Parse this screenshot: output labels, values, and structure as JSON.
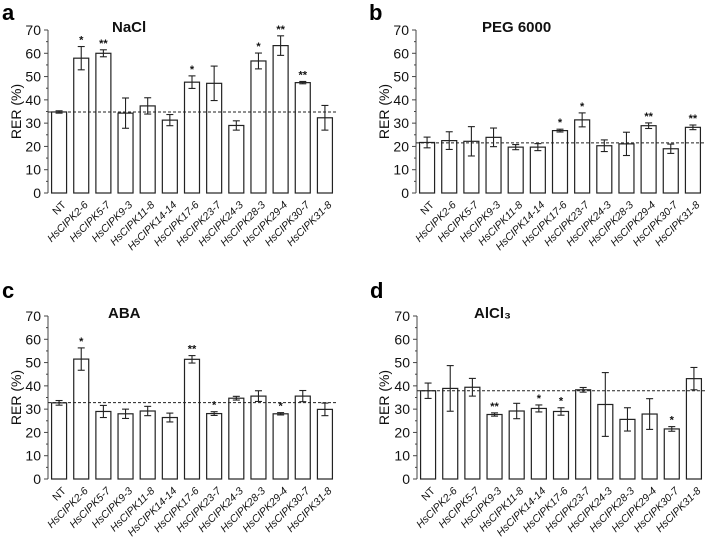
{
  "chart_data": [
    {
      "type": "bar",
      "panel_label": "a",
      "title": "NaCl",
      "ylabel": "RER (%)",
      "ylim": [
        0,
        70
      ],
      "yticks": [
        0,
        10,
        20,
        30,
        40,
        50,
        60,
        70
      ],
      "grid": false,
      "reference_line": 34.8,
      "categories": [
        "NT",
        "HsCIPK2-6",
        "HsCIPK5-7",
        "HsCIPK9-3",
        "HsCIPK11-8",
        "HsCIPK14-14",
        "HsCIPK17-6",
        "HsCIPK23-7",
        "HsCIPK24-3",
        "HsCIPK28-3",
        "HsCIPK29-4",
        "HsCIPK30-7",
        "HsCIPK31-8"
      ],
      "values": [
        34.8,
        57.9,
        60.0,
        34.3,
        37.4,
        31.3,
        47.6,
        47.1,
        29.0,
        56.7,
        63.3,
        47.4,
        32.3
      ],
      "errors": [
        0.5,
        5.0,
        1.5,
        6.5,
        3.5,
        2.4,
        2.7,
        7.4,
        2.0,
        3.4,
        4.2,
        0.5,
        5.3
      ],
      "significance": [
        "",
        "*",
        "**",
        "",
        "",
        "",
        "*",
        "",
        "",
        "*",
        "**",
        "**",
        ""
      ]
    },
    {
      "type": "bar",
      "panel_label": "b",
      "title": "PEG 6000",
      "ylabel": "RER (%)",
      "ylim": [
        0,
        70
      ],
      "yticks": [
        0,
        10,
        20,
        30,
        40,
        50,
        60,
        70
      ],
      "grid": false,
      "reference_line": 21.5,
      "categories": [
        "NT",
        "HsCIPK2-6",
        "HsCIPK5-7",
        "HsCIPK9-3",
        "HsCIPK11-8",
        "HsCIPK14-14",
        "HsCIPK17-6",
        "HsCIPK23-7",
        "HsCIPK24-3",
        "HsCIPK28-3",
        "HsCIPK29-4",
        "HsCIPK30-7",
        "HsCIPK31-8"
      ],
      "values": [
        21.7,
        22.5,
        22.2,
        23.9,
        19.7,
        19.7,
        26.8,
        31.4,
        20.3,
        21.1,
        28.9,
        19.0,
        28.2
      ],
      "errors": [
        2.3,
        3.8,
        6.3,
        4.0,
        1.1,
        1.5,
        0.6,
        3.0,
        2.5,
        5.0,
        1.2,
        2.0,
        1.0
      ],
      "significance": [
        "",
        "",
        "",
        "",
        "",
        "",
        "*",
        "*",
        "",
        "",
        "**",
        "",
        "**"
      ]
    },
    {
      "type": "bar",
      "panel_label": "c",
      "title": "ABA",
      "ylabel": "RER (%)",
      "ylim": [
        0,
        70
      ],
      "yticks": [
        0,
        10,
        20,
        30,
        40,
        50,
        60,
        70
      ],
      "grid": false,
      "reference_line": 32.8,
      "categories": [
        "NT",
        "HsCIPK2-6",
        "HsCIPK5-7",
        "HsCIPK9-3",
        "HsCIPK11-8",
        "HsCIPK14-14",
        "HsCIPK17-6",
        "HsCIPK23-7",
        "HsCIPK24-3",
        "HsCIPK28-3",
        "HsCIPK29-4",
        "HsCIPK30-7",
        "HsCIPK31-8"
      ],
      "values": [
        32.7,
        51.5,
        29.0,
        28.0,
        29.2,
        26.4,
        51.4,
        28.1,
        34.7,
        35.6,
        28.0,
        35.6,
        29.9
      ],
      "errors": [
        1.0,
        4.8,
        2.6,
        2.0,
        2.0,
        1.9,
        1.6,
        0.8,
        0.8,
        2.3,
        0.5,
        2.4,
        2.7
      ],
      "significance": [
        "",
        "*",
        "",
        "",
        "",
        "",
        "**",
        "*",
        "",
        "",
        "*",
        "",
        ""
      ]
    },
    {
      "type": "bar",
      "panel_label": "d",
      "title": "AlCl₃",
      "ylabel": "RER (%)",
      "ylim": [
        0,
        70
      ],
      "yticks": [
        0,
        10,
        20,
        30,
        40,
        50,
        60,
        70
      ],
      "grid": false,
      "reference_line": 37.9,
      "categories": [
        "NT",
        "HsCIPK2-6",
        "HsCIPK5-7",
        "HsCIPK9-3",
        "HsCIPK11-8",
        "HsCIPK14-14",
        "HsCIPK17-6",
        "HsCIPK23-7",
        "HsCIPK24-3",
        "HsCIPK28-3",
        "HsCIPK29-4",
        "HsCIPK30-7",
        "HsCIPK31-8"
      ],
      "values": [
        37.9,
        38.9,
        39.4,
        27.7,
        29.2,
        30.3,
        29.0,
        38.3,
        32.0,
        25.6,
        27.9,
        21.5,
        43.1
      ],
      "errors": [
        3.3,
        9.8,
        3.8,
        0.7,
        3.3,
        1.5,
        1.6,
        1.0,
        13.7,
        5.0,
        6.6,
        1.0,
        4.8
      ],
      "significance": [
        "",
        "",
        "",
        "**",
        "",
        "*",
        "*",
        "",
        "",
        "",
        "",
        "*",
        ""
      ]
    }
  ]
}
